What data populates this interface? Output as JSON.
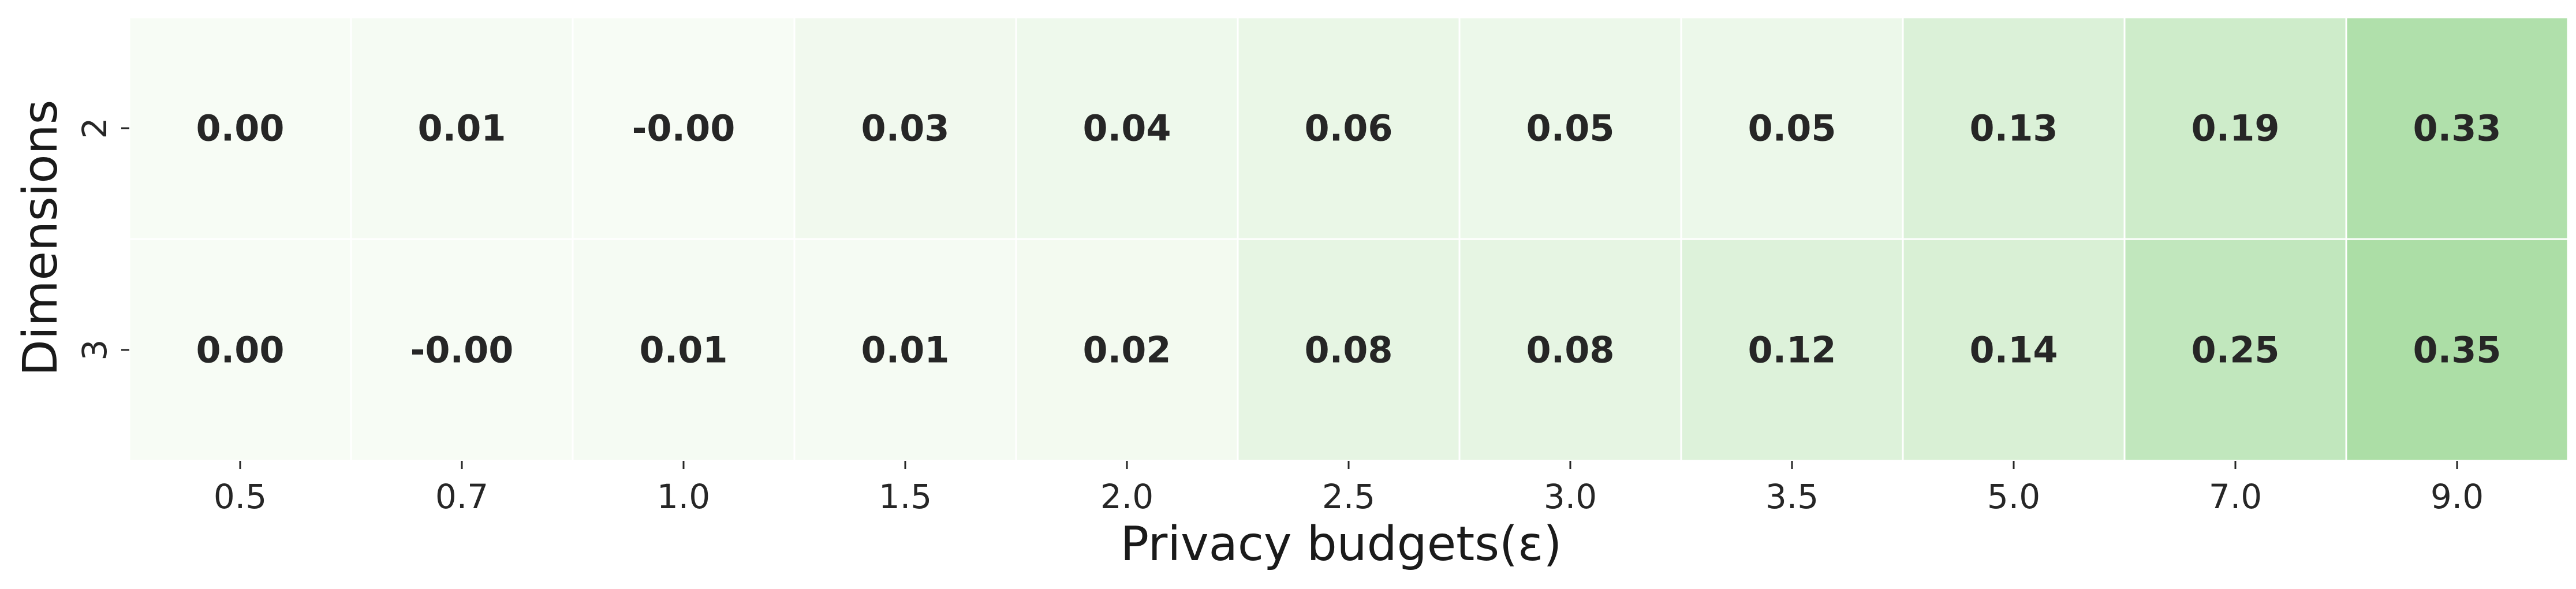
{
  "chart_data": {
    "type": "heatmap",
    "xlabel": "Privacy budgets(ε)",
    "ylabel": "Dimensions",
    "x_categories": [
      "0.5",
      "0.7",
      "1.0",
      "1.5",
      "2.0",
      "2.5",
      "3.0",
      "3.5",
      "5.0",
      "7.0",
      "9.0"
    ],
    "y_categories": [
      "2",
      "3"
    ],
    "values": [
      [
        0.0,
        0.01,
        -0.0,
        0.03,
        0.04,
        0.06,
        0.05,
        0.05,
        0.13,
        0.19,
        0.33
      ],
      [
        0.0,
        -0.0,
        0.01,
        0.01,
        0.02,
        0.08,
        0.08,
        0.12,
        0.14,
        0.25,
        0.35
      ]
    ],
    "cell_labels": [
      [
        "0.00",
        "0.01",
        "-0.00",
        "0.03",
        "0.04",
        "0.06",
        "0.05",
        "0.05",
        "0.13",
        "0.19",
        "0.33"
      ],
      [
        "0.00",
        "-0.00",
        "0.01",
        "0.01",
        "0.02",
        "0.08",
        "0.08",
        "0.12",
        "0.14",
        "0.25",
        "0.35"
      ]
    ],
    "colormap": "Greens",
    "color_low": "#f7fcf5",
    "color_high": "#acdea6",
    "grid_line_color": "#ffffff",
    "colorbar": false
  }
}
